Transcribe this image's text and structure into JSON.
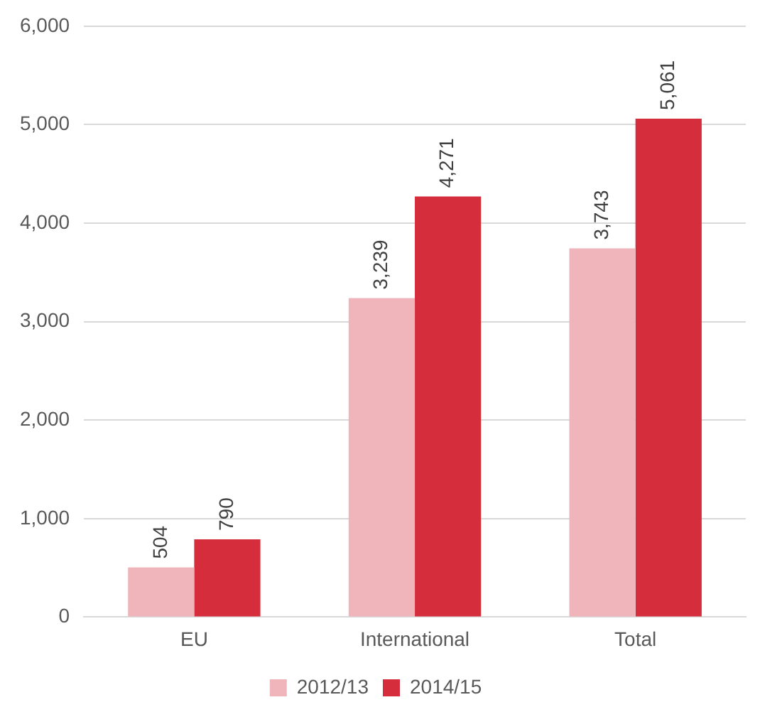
{
  "chart_data": {
    "type": "bar",
    "categories": [
      "EU",
      "International",
      "Total"
    ],
    "series": [
      {
        "name": "2012/13",
        "color": "#f0b5bb",
        "values": [
          504,
          3239,
          3743
        ],
        "value_labels": [
          "504",
          "3,239",
          "3,743"
        ]
      },
      {
        "name": "2014/15",
        "color": "#d62d3d",
        "values": [
          790,
          4271,
          5061
        ],
        "value_labels": [
          "790",
          "4,271",
          "5,061"
        ]
      }
    ],
    "ylim": [
      0,
      6000
    ],
    "yticks": [
      {
        "value": 0,
        "label": "0"
      },
      {
        "value": 1000,
        "label": "1,000"
      },
      {
        "value": 2000,
        "label": "2,000"
      },
      {
        "value": 3000,
        "label": "3,000"
      },
      {
        "value": 4000,
        "label": "4,000"
      },
      {
        "value": 5000,
        "label": "5,000"
      },
      {
        "value": 6000,
        "label": "6,000"
      }
    ],
    "grid": "y",
    "legend": "bottom"
  }
}
